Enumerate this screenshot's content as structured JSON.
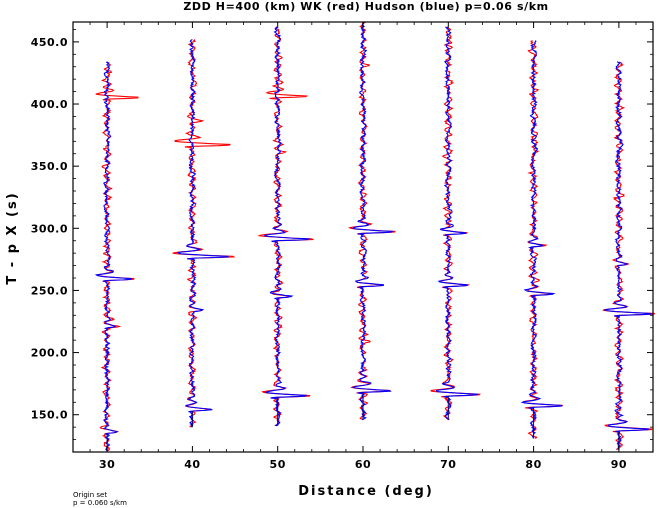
{
  "chart_data": {
    "type": "line",
    "title": "ZDD H=400 (km) WK (red) Hudson (blue) p=0.06 s/km",
    "xlabel": "Distance (deg)",
    "ylabel": "T - p X (s)",
    "xlim": [
      26,
      94
    ],
    "ylim": [
      120,
      466
    ],
    "xticks": [
      30,
      40,
      50,
      60,
      70,
      80,
      90
    ],
    "xtick_labels": [
      "30",
      "40",
      "50",
      "60",
      "70",
      "80",
      "90"
    ],
    "yticks": [
      150,
      200,
      250,
      300,
      350,
      400,
      450
    ],
    "ytick_labels": [
      "150.0",
      "200.0",
      "250.0",
      "300.0",
      "350.0",
      "400.0",
      "450.0"
    ],
    "grid": false,
    "legend": "none",
    "series": [
      {
        "name": "WK",
        "color": "#ff0000"
      },
      {
        "name": "Hudson",
        "color": "#0000ff"
      }
    ],
    "traces": [
      {
        "distance": 30,
        "start": 121,
        "end": 434,
        "arrivals": [
          {
            "t": 135,
            "amp": 1.0
          },
          {
            "t": 258,
            "amp": 3.2
          },
          {
            "t": 220,
            "amp": 1.0
          }
        ],
        "red_extra": [
          {
            "t": 404,
            "amp": 4.0
          },
          {
            "t": 425,
            "amp": 0.8
          }
        ]
      },
      {
        "distance": 40,
        "start": 140,
        "end": 452,
        "arrivals": [
          {
            "t": 153,
            "amp": 2.2
          },
          {
            "t": 276,
            "amp": 4.5
          },
          {
            "t": 233,
            "amp": 1.0
          }
        ],
        "red_extra": [
          {
            "t": 366,
            "amp": 4.5
          },
          {
            "t": 385,
            "amp": 1.0
          }
        ]
      },
      {
        "distance": 50,
        "start": 141,
        "end": 462,
        "arrivals": [
          {
            "t": 164,
            "amp": 3.5
          },
          {
            "t": 290,
            "amp": 4.0
          },
          {
            "t": 244,
            "amp": 1.8
          }
        ],
        "red_extra": [
          {
            "t": 405,
            "amp": 4.0
          },
          {
            "t": 360,
            "amp": 0.6
          }
        ]
      },
      {
        "distance": 60,
        "start": 146,
        "end": 466,
        "arrivals": [
          {
            "t": 168,
            "amp": 3.5
          },
          {
            "t": 296,
            "amp": 3.5
          },
          {
            "t": 253,
            "amp": 2.5
          }
        ],
        "red_extra": [
          {
            "t": 208,
            "amp": 0.8
          },
          {
            "t": 430,
            "amp": 0.6
          }
        ]
      },
      {
        "distance": 70,
        "start": 146,
        "end": 462,
        "arrivals": [
          {
            "t": 165,
            "amp": 3.5
          },
          {
            "t": 295,
            "amp": 2.2
          },
          {
            "t": 253,
            "amp": 2.5
          }
        ],
        "red_extra": [
          {
            "t": 448,
            "amp": 0.8
          }
        ]
      },
      {
        "distance": 80,
        "start": 131,
        "end": 451,
        "arrivals": [
          {
            "t": 156,
            "amp": 3.5
          },
          {
            "t": 246,
            "amp": 2.2
          },
          {
            "t": 285,
            "amp": 1.3
          }
        ],
        "red_extra": [
          {
            "t": 345,
            "amp": 0.6
          }
        ]
      },
      {
        "distance": 90,
        "start": 122,
        "end": 434,
        "arrivals": [
          {
            "t": 137,
            "amp": 3.5
          },
          {
            "t": 230,
            "amp": 4.0
          },
          {
            "t": 270,
            "amp": 1.0
          }
        ],
        "red_extra": [
          {
            "t": 325,
            "amp": 0.5
          }
        ]
      }
    ]
  },
  "footer": {
    "line1": "Origin set",
    "line2": "p = 0.060 s/km"
  }
}
